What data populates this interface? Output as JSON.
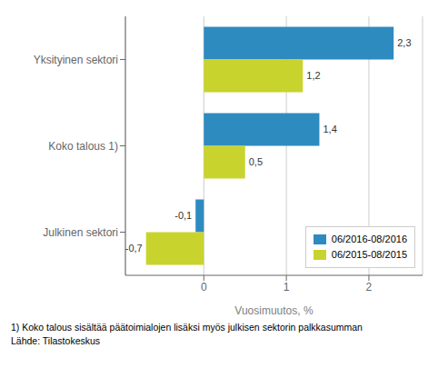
{
  "chart_data": {
    "type": "bar",
    "orientation": "horizontal",
    "categories": [
      "Julkinen sektori",
      "Koko talous 1)",
      "Yksityinen sektori"
    ],
    "series": [
      {
        "name": "06/2016-08/2016",
        "color": "#2e8bc0",
        "values": [
          -0.1,
          1.4,
          2.3
        ],
        "value_labels": [
          "-0,1",
          "1,4",
          "2,3"
        ]
      },
      {
        "name": "06/2015-08/2015",
        "color": "#c8d42d",
        "values": [
          -0.7,
          0.5,
          1.2
        ],
        "value_labels": [
          "-0,7",
          "0,5",
          "1,2"
        ]
      }
    ],
    "xlabel": "Vuosimuutos, %",
    "xlim": [
      -0.95,
      2.65
    ],
    "xticks": [
      0,
      1,
      2
    ],
    "grid": true,
    "data_labels": true,
    "legend": "lower right",
    "annotations": [
      "1) Koko talous sisältää päätoimialojen lisäksi myös julkisen sektorin palkkasumman",
      "Lähde: Tilastokeskus"
    ]
  }
}
